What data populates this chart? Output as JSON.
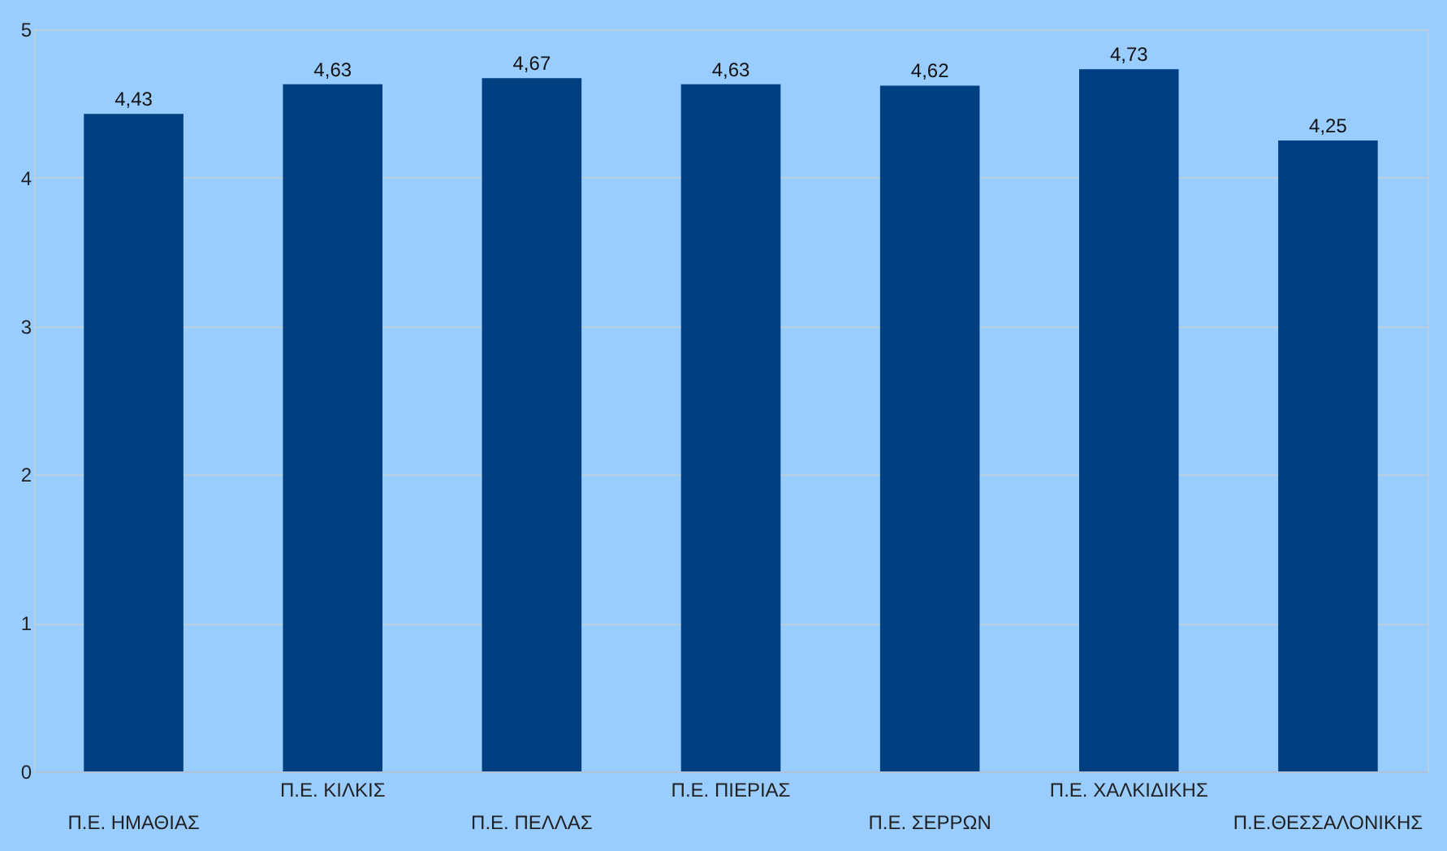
{
  "chart_data": {
    "type": "bar",
    "categories": [
      "Π.Ε. ΗΜΑΘΙΑΣ",
      "Π.Ε. ΚΙΛΚΙΣ",
      "Π.Ε. ΠΕΛΛΑΣ",
      "Π.Ε. ΠΙΕΡΙΑΣ",
      "Π.Ε. ΣΕΡΡΩΝ",
      "Π.Ε. ΧΑΛΚΙΔΙΚΗΣ",
      "Π.Ε.ΘΕΣΣΑΛΟΝΙΚΗΣ"
    ],
    "values": [
      4.43,
      4.63,
      4.67,
      4.63,
      4.62,
      4.73,
      4.25
    ],
    "value_labels": [
      "4,43",
      "4,63",
      "4,67",
      "4,63",
      "4,62",
      "4,73",
      "4,25"
    ],
    "color": "#003f80",
    "ylim": [
      0,
      5
    ],
    "yticks": [
      0,
      1,
      2,
      3,
      4,
      5
    ],
    "grid": "y"
  }
}
